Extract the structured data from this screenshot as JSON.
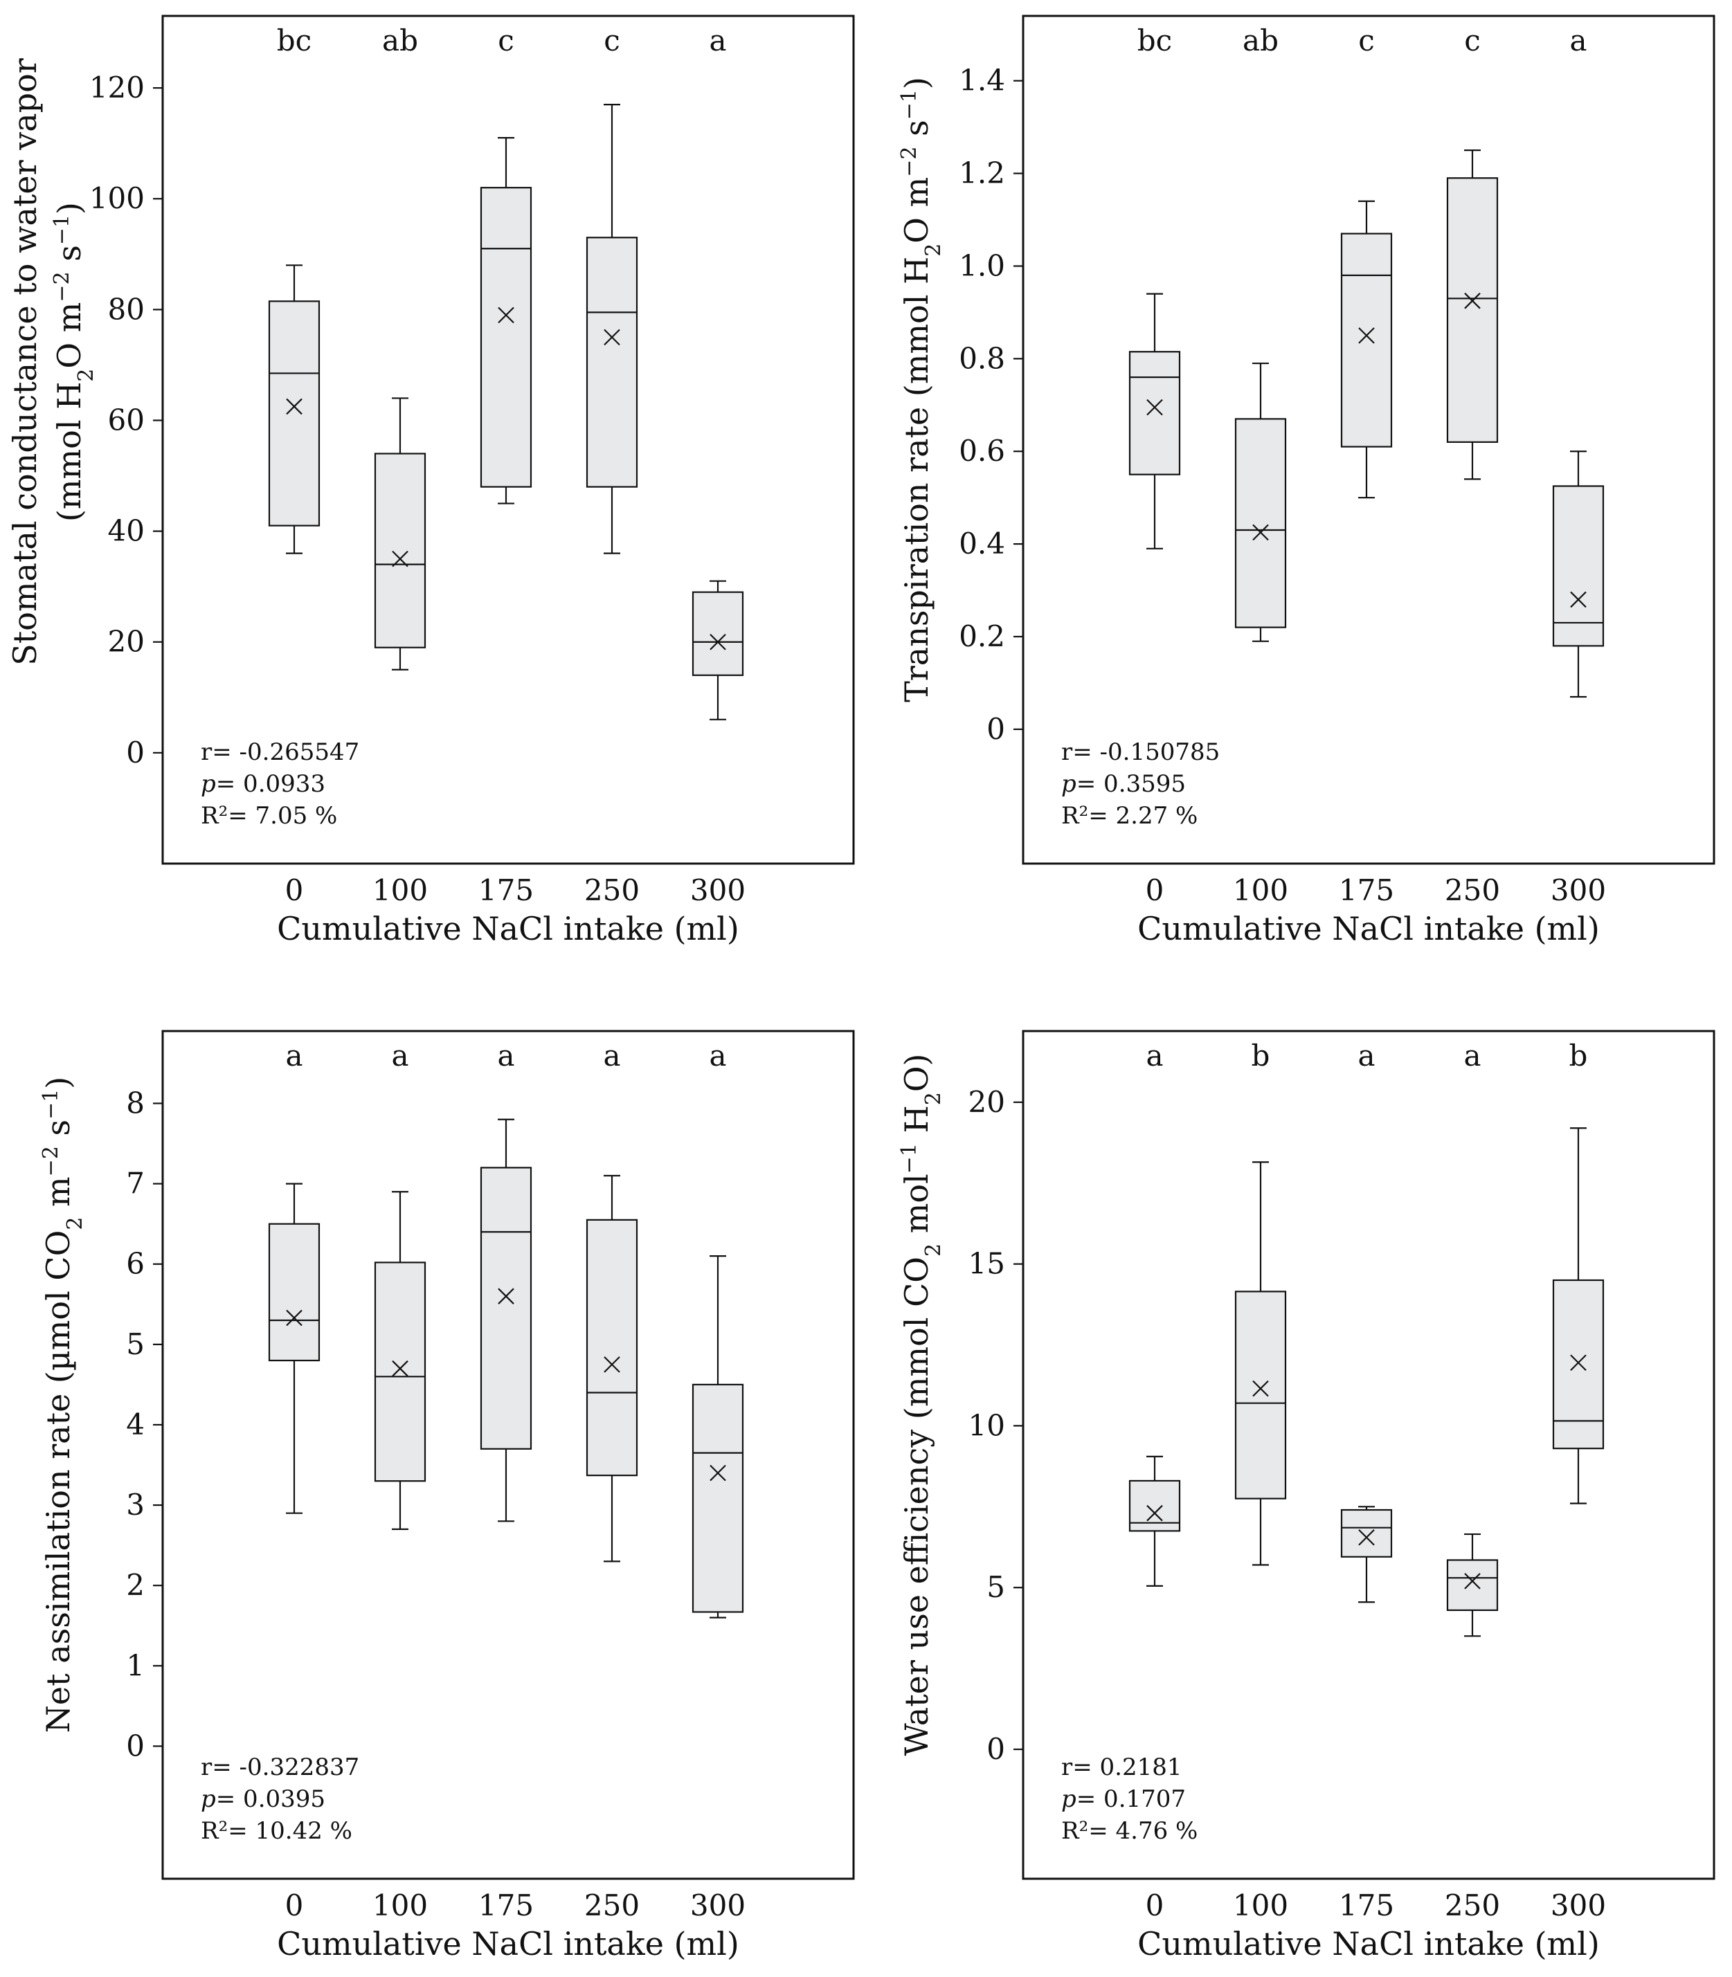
{
  "chart_data": [
    {
      "type": "box",
      "title": "",
      "xlabel": "Cumulative NaCl intake (ml)",
      "ylabel_line1": "Stomatal conductance to water vapor",
      "ylabel_line2_prefix": "(mmol H",
      "ylabel_line2_sub": "2",
      "ylabel_line2_mid": "O m",
      "ylabel_line2_sup1": "−2",
      "ylabel_line2_mid2": " s",
      "ylabel_line2_sup2": "−1",
      "ylabel_line2_suffix": ")",
      "categories": [
        "0",
        "100",
        "175",
        "250",
        "300"
      ],
      "letters": [
        "bc",
        "ab",
        "c",
        "c",
        "a"
      ],
      "ylim": [
        -20,
        133
      ],
      "yticks": [
        0,
        20,
        40,
        60,
        80,
        100,
        120
      ],
      "ytick_labels": [
        "0",
        "20",
        "40",
        "60",
        "80",
        "100",
        "120"
      ],
      "stats": {
        "r": "r= -0.265547",
        "p_label": "p",
        "p_value": "= 0.0933",
        "r2": "R²= 7.05 %"
      },
      "series": [
        {
          "category": "0",
          "min": 36,
          "q1": 41,
          "median": 68.5,
          "q3": 81.5,
          "max": 88,
          "mean": 62.5
        },
        {
          "category": "100",
          "min": 15,
          "q1": 19,
          "median": 34,
          "q3": 54,
          "max": 64,
          "mean": 35
        },
        {
          "category": "175",
          "min": 45,
          "q1": 48,
          "median": 91,
          "q3": 102,
          "max": 111,
          "mean": 79
        },
        {
          "category": "250",
          "min": 36,
          "q1": 48,
          "median": 79.5,
          "q3": 93,
          "max": 117,
          "mean": 75
        },
        {
          "category": "300",
          "min": 6,
          "q1": 14,
          "median": 20,
          "q3": 29,
          "max": 31,
          "mean": 20
        }
      ]
    },
    {
      "type": "box",
      "title": "",
      "xlabel": "Cumulative NaCl intake (ml)",
      "ylabel_line1": "Transpiration rate (mmol H",
      "ylabel_line1_sub": "2",
      "ylabel_line1_mid": "O m",
      "ylabel_line1_sup1": "−2",
      "ylabel_line1_mid2": " s",
      "ylabel_line1_sup2": "−1",
      "ylabel_line1_suffix": ")",
      "categories": [
        "0",
        "100",
        "175",
        "250",
        "300"
      ],
      "letters": [
        "bc",
        "ab",
        "c",
        "c",
        "a"
      ],
      "ylim": [
        -0.29,
        1.54
      ],
      "yticks": [
        0,
        0.2,
        0.4,
        0.6,
        0.8,
        1.0,
        1.2,
        1.4
      ],
      "ytick_labels": [
        "0",
        "0.2",
        "0.4",
        "0.6",
        "0.8",
        "1.0",
        "1.2",
        "1.4"
      ],
      "stats": {
        "r": "r= -0.150785",
        "p_label": "p",
        "p_value": "= 0.3595",
        "r2": "R²= 2.27 %"
      },
      "series": [
        {
          "category": "0",
          "min": 0.39,
          "q1": 0.55,
          "median": 0.76,
          "q3": 0.815,
          "max": 0.94,
          "mean": 0.695
        },
        {
          "category": "100",
          "min": 0.19,
          "q1": 0.22,
          "median": 0.43,
          "q3": 0.67,
          "max": 0.79,
          "mean": 0.425
        },
        {
          "category": "175",
          "min": 0.5,
          "q1": 0.61,
          "median": 0.98,
          "q3": 1.07,
          "max": 1.14,
          "mean": 0.85
        },
        {
          "category": "250",
          "min": 0.54,
          "q1": 0.62,
          "median": 0.93,
          "q3": 1.19,
          "max": 1.25,
          "mean": 0.925
        },
        {
          "category": "300",
          "min": 0.07,
          "q1": 0.18,
          "median": 0.23,
          "q3": 0.525,
          "max": 0.6,
          "mean": 0.28
        }
      ]
    },
    {
      "type": "box",
      "title": "",
      "xlabel": "Cumulative NaCl intake (ml)",
      "ylabel_line1": "Net assimilation rate (µmol CO",
      "ylabel_line1_sub": "2",
      "ylabel_line1_mid": " m",
      "ylabel_line1_sup1": "−2",
      "ylabel_line1_mid2": " s",
      "ylabel_line1_sup2": "−1",
      "ylabel_line1_suffix": ")",
      "categories": [
        "0",
        "100",
        "175",
        "250",
        "300"
      ],
      "letters": [
        "a",
        "a",
        "a",
        "a",
        "a"
      ],
      "ylim": [
        -1.65,
        8.9
      ],
      "yticks": [
        0,
        1,
        2,
        3,
        4,
        5,
        6,
        7,
        8
      ],
      "ytick_labels": [
        "0",
        "1",
        "2",
        "3",
        "4",
        "5",
        "6",
        "7",
        "8"
      ],
      "stats": {
        "r": "r= -0.322837",
        "p_label": "p",
        "p_value": "= 0.0395",
        "r2": "R²= 10.42 %"
      },
      "series": [
        {
          "category": "0",
          "min": 2.9,
          "q1": 4.8,
          "median": 5.3,
          "q3": 6.5,
          "max": 7.0,
          "mean": 5.33
        },
        {
          "category": "100",
          "min": 2.7,
          "q1": 3.3,
          "median": 4.6,
          "q3": 6.02,
          "max": 6.9,
          "mean": 4.7
        },
        {
          "category": "175",
          "min": 2.8,
          "q1": 3.7,
          "median": 6.4,
          "q3": 7.2,
          "max": 7.8,
          "mean": 5.6
        },
        {
          "category": "250",
          "min": 2.3,
          "q1": 3.37,
          "median": 4.4,
          "q3": 6.55,
          "max": 7.1,
          "mean": 4.75
        },
        {
          "category": "300",
          "min": 1.6,
          "q1": 1.67,
          "median": 3.65,
          "q3": 4.5,
          "max": 6.1,
          "mean": 3.4
        }
      ]
    },
    {
      "type": "box",
      "title": "",
      "xlabel": "Cumulative NaCl intake (ml)",
      "ylabel_line1": "Water use efficiency (mmol CO",
      "ylabel_line1_sub": "2",
      "ylabel_line1_mid": " mol",
      "ylabel_line1_sup1": "−1",
      "ylabel_line1_mid2": " H",
      "ylabel_line1_sub2": "2",
      "ylabel_line1_suffix": "O)",
      "categories": [
        "0",
        "100",
        "175",
        "250",
        "300"
      ],
      "letters": [
        "a",
        "b",
        "a",
        "a",
        "b"
      ],
      "ylim": [
        -4,
        22.2
      ],
      "yticks": [
        0,
        5,
        10,
        15,
        20
      ],
      "ytick_labels": [
        "0",
        "5",
        "10",
        "15",
        "20"
      ],
      "stats": {
        "r": "r= 0.2181",
        "p_label": "p",
        "p_value": "= 0.1707",
        "r2": "R²= 4.76 %"
      },
      "series": [
        {
          "category": "0",
          "min": 5.05,
          "q1": 6.75,
          "median": 7.0,
          "q3": 8.3,
          "max": 9.05,
          "mean": 7.3
        },
        {
          "category": "100",
          "min": 5.7,
          "q1": 7.75,
          "median": 10.7,
          "q3": 14.15,
          "max": 18.15,
          "mean": 11.15
        },
        {
          "category": "175",
          "min": 4.55,
          "q1": 5.95,
          "median": 6.85,
          "q3": 7.4,
          "max": 7.5,
          "mean": 6.55
        },
        {
          "category": "250",
          "min": 3.5,
          "q1": 4.3,
          "median": 5.3,
          "q3": 5.85,
          "max": 6.65,
          "mean": 5.2
        },
        {
          "category": "300",
          "min": 7.6,
          "q1": 9.3,
          "median": 10.15,
          "q3": 14.5,
          "max": 19.2,
          "mean": 11.95
        }
      ]
    }
  ]
}
